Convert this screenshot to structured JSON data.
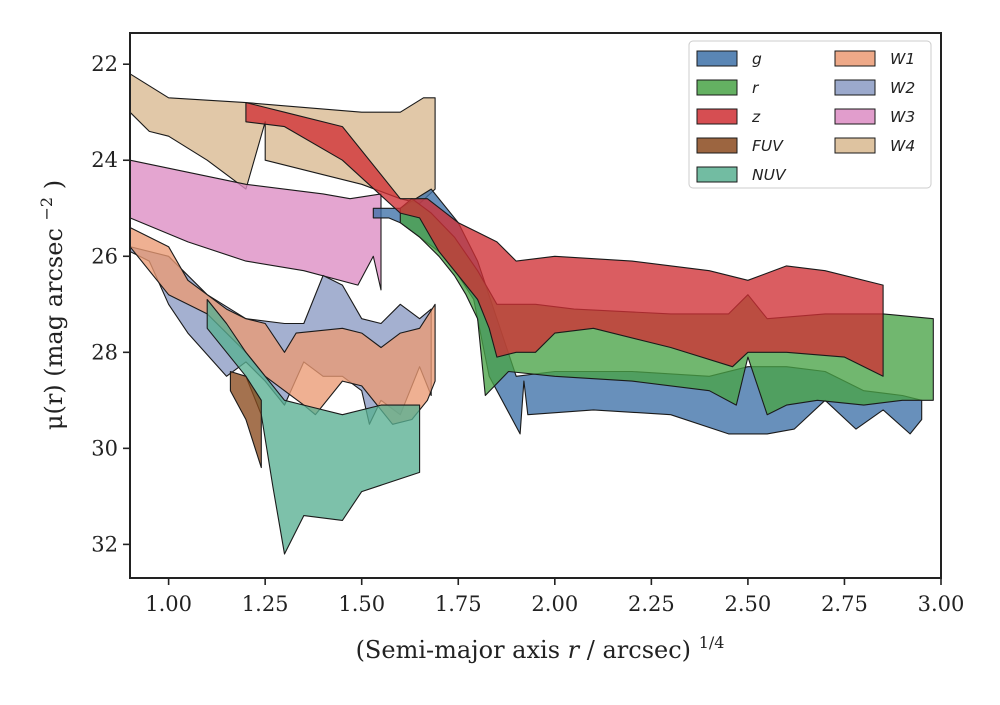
{
  "chart_data": {
    "type": "area",
    "title": "",
    "xlabel": "(Semi-major axis",
    "xlabel_var": "r",
    "xlabel_unit": "/ arcsec)",
    "xlabel_exp": "1/4",
    "ylabel": "μ(r) (mag arcsec",
    "ylabel_exp": "−2",
    "ylabel_close": ")",
    "xlim": [
      0.9,
      3.0
    ],
    "ylim": [
      32.7,
      21.35
    ],
    "y_inverted": true,
    "grid": false,
    "legend_position": "top-right",
    "legend_columns": 2,
    "xticks": [
      1.0,
      1.25,
      1.5,
      1.75,
      2.0,
      2.25,
      2.5,
      2.75,
      3.0
    ],
    "xtick_labels": [
      "1.00",
      "1.25",
      "1.50",
      "1.75",
      "2.00",
      "2.25",
      "2.50",
      "2.75",
      "3.00"
    ],
    "yticks": [
      22,
      24,
      26,
      28,
      30,
      32
    ],
    "ytick_labels": [
      "22",
      "24",
      "26",
      "28",
      "30",
      "32"
    ],
    "series": [
      {
        "name": "W4",
        "color": "#d8b98f",
        "upper": [
          [
            0.9,
            22.2
          ],
          [
            1.0,
            22.7
          ],
          [
            1.2,
            22.8
          ],
          [
            1.35,
            22.9
          ],
          [
            1.5,
            23.0
          ],
          [
            1.6,
            23.0
          ],
          [
            1.66,
            22.7
          ],
          [
            1.69,
            22.7
          ]
        ],
        "lower": [
          [
            1.69,
            24.6
          ],
          [
            1.65,
            24.9
          ],
          [
            1.6,
            24.8
          ],
          [
            1.5,
            24.5
          ],
          [
            1.4,
            24.3
          ],
          [
            1.25,
            24.0
          ],
          [
            1.25,
            23.2
          ],
          [
            1.2,
            24.6
          ],
          [
            1.1,
            24.0
          ],
          [
            1.0,
            23.5
          ],
          [
            0.95,
            23.4
          ],
          [
            0.9,
            23.0
          ]
        ]
      },
      {
        "name": "W3",
        "color": "#dc8cc3",
        "upper": [
          [
            0.9,
            24.0
          ],
          [
            1.2,
            24.5
          ],
          [
            1.4,
            24.7
          ],
          [
            1.47,
            24.8
          ],
          [
            1.55,
            24.7
          ]
        ],
        "lower": [
          [
            1.55,
            26.7
          ],
          [
            1.53,
            26.0
          ],
          [
            1.49,
            26.6
          ],
          [
            1.35,
            26.3
          ],
          [
            1.2,
            26.1
          ],
          [
            1.05,
            25.7
          ],
          [
            0.9,
            25.2
          ]
        ]
      },
      {
        "name": "W2",
        "color": "#8a9ac3",
        "upper": [
          [
            0.9,
            25.8
          ],
          [
            1.0,
            26.0
          ],
          [
            1.1,
            26.8
          ],
          [
            1.2,
            27.3
          ],
          [
            1.3,
            27.4
          ],
          [
            1.35,
            27.4
          ],
          [
            1.4,
            26.4
          ],
          [
            1.45,
            26.6
          ],
          [
            1.5,
            27.3
          ],
          [
            1.55,
            27.4
          ],
          [
            1.6,
            27.0
          ],
          [
            1.65,
            27.3
          ],
          [
            1.68,
            27.1
          ]
        ],
        "lower": [
          [
            1.68,
            28.9
          ],
          [
            1.65,
            28.3
          ],
          [
            1.6,
            29.3
          ],
          [
            1.55,
            29.0
          ],
          [
            1.52,
            29.5
          ],
          [
            1.5,
            28.8
          ],
          [
            1.45,
            28.5
          ],
          [
            1.4,
            28.5
          ],
          [
            1.35,
            28.2
          ],
          [
            1.3,
            29.1
          ],
          [
            1.25,
            28.6
          ],
          [
            1.2,
            28.2
          ],
          [
            1.15,
            28.5
          ],
          [
            1.05,
            27.6
          ],
          [
            1.0,
            27.0
          ],
          [
            0.95,
            26.1
          ],
          [
            0.9,
            25.9
          ]
        ]
      },
      {
        "name": "W1",
        "color": "#eb9a73",
        "upper": [
          [
            0.9,
            25.4
          ],
          [
            1.0,
            25.8
          ],
          [
            1.05,
            26.5
          ],
          [
            1.15,
            27.1
          ],
          [
            1.2,
            27.3
          ],
          [
            1.25,
            27.4
          ],
          [
            1.3,
            28.0
          ],
          [
            1.33,
            27.6
          ],
          [
            1.45,
            27.5
          ],
          [
            1.5,
            27.6
          ],
          [
            1.55,
            27.9
          ],
          [
            1.6,
            27.6
          ],
          [
            1.65,
            27.5
          ],
          [
            1.69,
            27.0
          ]
        ],
        "lower": [
          [
            1.69,
            28.6
          ],
          [
            1.67,
            29.0
          ],
          [
            1.63,
            29.4
          ],
          [
            1.58,
            29.5
          ],
          [
            1.5,
            28.7
          ],
          [
            1.45,
            28.6
          ],
          [
            1.38,
            29.3
          ],
          [
            1.35,
            29.1
          ],
          [
            1.3,
            28.8
          ],
          [
            1.25,
            28.5
          ],
          [
            1.2,
            28.0
          ],
          [
            1.1,
            27.2
          ],
          [
            1.0,
            26.8
          ],
          [
            0.9,
            25.8
          ]
        ]
      },
      {
        "name": "NUV",
        "color": "#59b092",
        "upper": [
          [
            1.1,
            26.9
          ],
          [
            1.15,
            27.4
          ],
          [
            1.2,
            28.0
          ],
          [
            1.25,
            28.5
          ],
          [
            1.3,
            29.0
          ],
          [
            1.35,
            29.1
          ],
          [
            1.45,
            29.3
          ],
          [
            1.55,
            29.1
          ],
          [
            1.65,
            29.1
          ]
        ],
        "lower": [
          [
            1.65,
            30.5
          ],
          [
            1.5,
            30.9
          ],
          [
            1.45,
            31.5
          ],
          [
            1.35,
            31.4
          ],
          [
            1.3,
            32.2
          ],
          [
            1.27,
            30.8
          ],
          [
            1.24,
            29.3
          ],
          [
            1.2,
            28.5
          ],
          [
            1.1,
            27.5
          ]
        ]
      },
      {
        "name": "FUV",
        "color": "#8b4a1e",
        "upper": [
          [
            1.16,
            28.4
          ],
          [
            1.2,
            28.5
          ],
          [
            1.24,
            29.0
          ]
        ],
        "lower": [
          [
            1.24,
            30.4
          ],
          [
            1.2,
            29.4
          ],
          [
            1.16,
            28.8
          ]
        ]
      },
      {
        "name": "g",
        "color": "#3d71a8",
        "upper": [
          [
            1.53,
            25.0
          ],
          [
            1.6,
            25.0
          ],
          [
            1.68,
            24.6
          ],
          [
            1.75,
            25.3
          ],
          [
            1.8,
            26.1
          ],
          [
            1.9,
            28.5
          ],
          [
            2.0,
            28.4
          ],
          [
            2.2,
            28.4
          ],
          [
            2.4,
            28.5
          ],
          [
            2.5,
            28.3
          ],
          [
            2.6,
            28.3
          ],
          [
            2.7,
            28.4
          ],
          [
            2.8,
            28.8
          ],
          [
            2.9,
            28.9
          ],
          [
            2.95,
            29.0
          ]
        ],
        "lower": [
          [
            2.95,
            29.4
          ],
          [
            2.92,
            29.7
          ],
          [
            2.85,
            29.2
          ],
          [
            2.78,
            29.6
          ],
          [
            2.7,
            29.0
          ],
          [
            2.62,
            29.6
          ],
          [
            2.55,
            29.7
          ],
          [
            2.45,
            29.7
          ],
          [
            2.3,
            29.3
          ],
          [
            2.1,
            29.2
          ],
          [
            1.93,
            29.3
          ],
          [
            1.92,
            28.6
          ],
          [
            1.91,
            29.7
          ],
          [
            1.83,
            28.5
          ],
          [
            1.79,
            26.9
          ],
          [
            1.75,
            26.4
          ],
          [
            1.7,
            25.9
          ],
          [
            1.6,
            25.3
          ],
          [
            1.57,
            25.2
          ],
          [
            1.53,
            25.2
          ]
        ]
      },
      {
        "name": "r",
        "color": "#49a347",
        "upper": [
          [
            1.6,
            25.0
          ],
          [
            1.63,
            24.8
          ],
          [
            1.68,
            25.1
          ],
          [
            1.74,
            25.6
          ],
          [
            1.8,
            26.3
          ],
          [
            1.85,
            27.0
          ],
          [
            1.95,
            27.0
          ],
          [
            2.05,
            27.1
          ],
          [
            2.3,
            27.2
          ],
          [
            2.45,
            27.2
          ],
          [
            2.5,
            26.8
          ],
          [
            2.55,
            27.3
          ],
          [
            2.7,
            27.2
          ],
          [
            2.85,
            27.2
          ],
          [
            2.98,
            27.3
          ]
        ],
        "lower": [
          [
            2.98,
            29.0
          ],
          [
            2.9,
            29.0
          ],
          [
            2.8,
            29.1
          ],
          [
            2.68,
            29.0
          ],
          [
            2.6,
            29.1
          ],
          [
            2.55,
            29.3
          ],
          [
            2.5,
            28.1
          ],
          [
            2.47,
            29.1
          ],
          [
            2.4,
            28.8
          ],
          [
            2.2,
            28.6
          ],
          [
            2.0,
            28.5
          ],
          [
            1.88,
            28.4
          ],
          [
            1.82,
            28.9
          ],
          [
            1.8,
            27.3
          ],
          [
            1.77,
            26.8
          ],
          [
            1.74,
            26.4
          ],
          [
            1.7,
            26.0
          ],
          [
            1.65,
            25.6
          ],
          [
            1.6,
            25.3
          ]
        ]
      },
      {
        "name": "z",
        "color": "#cf2f34",
        "upper": [
          [
            1.2,
            22.8
          ],
          [
            1.25,
            22.9
          ],
          [
            1.3,
            23.0
          ],
          [
            1.45,
            23.3
          ],
          [
            1.6,
            24.8
          ],
          [
            1.67,
            24.8
          ],
          [
            1.75,
            25.3
          ],
          [
            1.8,
            25.5
          ],
          [
            1.85,
            25.7
          ],
          [
            1.9,
            26.1
          ],
          [
            2.0,
            26.0
          ],
          [
            2.2,
            26.1
          ],
          [
            2.4,
            26.3
          ],
          [
            2.5,
            26.5
          ],
          [
            2.6,
            26.2
          ],
          [
            2.7,
            26.3
          ],
          [
            2.85,
            26.6
          ]
        ],
        "lower": [
          [
            2.85,
            28.5
          ],
          [
            2.75,
            28.1
          ],
          [
            2.6,
            28.0
          ],
          [
            2.5,
            28.0
          ],
          [
            2.46,
            28.3
          ],
          [
            2.3,
            27.9
          ],
          [
            2.1,
            27.5
          ],
          [
            2.0,
            27.6
          ],
          [
            1.95,
            28.0
          ],
          [
            1.9,
            28.0
          ],
          [
            1.85,
            28.1
          ],
          [
            1.83,
            27.5
          ],
          [
            1.8,
            26.9
          ],
          [
            1.75,
            26.4
          ],
          [
            1.7,
            25.9
          ],
          [
            1.65,
            25.2
          ],
          [
            1.6,
            25.1
          ],
          [
            1.45,
            24.0
          ],
          [
            1.3,
            23.3
          ],
          [
            1.2,
            23.2
          ]
        ]
      }
    ],
    "legend": [
      {
        "name": "g",
        "color": "#3d71a8"
      },
      {
        "name": "r",
        "color": "#49a347"
      },
      {
        "name": "z",
        "color": "#cf2f34"
      },
      {
        "name": "FUV",
        "color": "#8b4a1e"
      },
      {
        "name": "NUV",
        "color": "#59b092"
      },
      {
        "name": "W1",
        "color": "#eb9a73"
      },
      {
        "name": "W2",
        "color": "#8a9ac3"
      },
      {
        "name": "W3",
        "color": "#dc8cc3"
      },
      {
        "name": "W4",
        "color": "#d8b98f"
      }
    ]
  }
}
